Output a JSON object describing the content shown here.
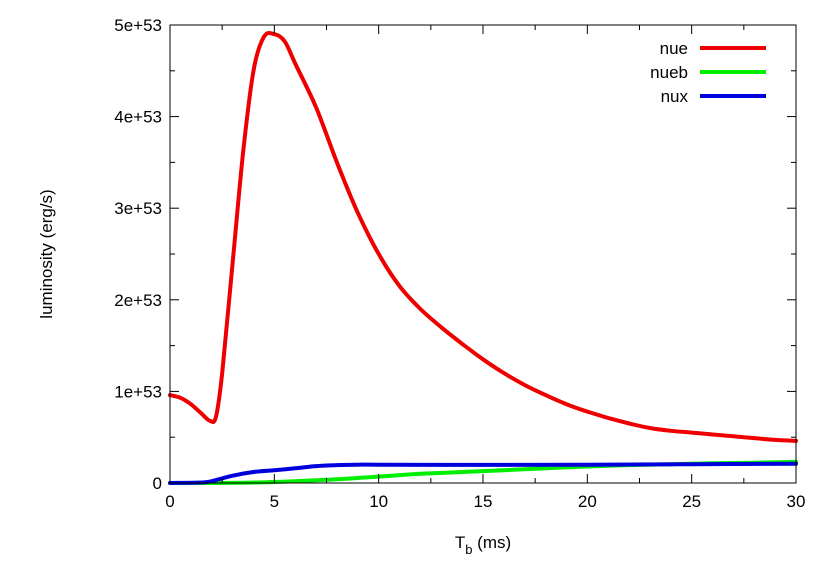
{
  "chart_data": {
    "type": "line",
    "xlabel_main": "T",
    "xlabel_sub": "b",
    "xlabel_rest": " (ms)",
    "ylabel": "luminosity (erg/s)",
    "xlim": [
      0,
      30
    ],
    "ylim": [
      0,
      5e+53
    ],
    "x_ticks": [
      0,
      5,
      10,
      15,
      20,
      25,
      30
    ],
    "x_tick_labels": [
      "0",
      "5",
      "10",
      "15",
      "20",
      "25",
      "30"
    ],
    "y_ticks": [
      0,
      1e+53,
      2e+53,
      3e+53,
      4e+53,
      5e+53
    ],
    "y_tick_labels": [
      "0",
      "1e+53",
      "2e+53",
      "3e+53",
      "4e+53",
      "5e+53"
    ],
    "grid": false,
    "legend_position": "top-right",
    "series": [
      {
        "name": "nue",
        "color": "#ee0000",
        "points": [
          [
            0,
            9.6e+52
          ],
          [
            0.5,
            9.3e+52
          ],
          [
            1,
            8.6e+52
          ],
          [
            1.5,
            7.6e+52
          ],
          [
            1.9,
            6.8e+52
          ],
          [
            2.2,
            7.2e+52
          ],
          [
            2.5,
            1.2e+53
          ],
          [
            3,
            2.4e+53
          ],
          [
            3.5,
            3.6e+53
          ],
          [
            4,
            4.5e+53
          ],
          [
            4.5,
            4.87e+53
          ],
          [
            5,
            4.9e+53
          ],
          [
            5.5,
            4.82e+53
          ],
          [
            6,
            4.58e+53
          ],
          [
            7,
            4.1e+53
          ],
          [
            8,
            3.5e+53
          ],
          [
            9,
            2.95e+53
          ],
          [
            10,
            2.5e+53
          ],
          [
            11,
            2.15e+53
          ],
          [
            12,
            1.9e+53
          ],
          [
            13,
            1.7e+53
          ],
          [
            14,
            1.52e+53
          ],
          [
            15,
            1.35e+53
          ],
          [
            16,
            1.2e+53
          ],
          [
            17,
            1.07e+53
          ],
          [
            18,
            9.6e+52
          ],
          [
            19,
            8.6e+52
          ],
          [
            20,
            7.8e+52
          ],
          [
            21,
            7.1e+52
          ],
          [
            22,
            6.5e+52
          ],
          [
            23,
            6e+52
          ],
          [
            24,
            5.7e+52
          ],
          [
            25,
            5.5e+52
          ],
          [
            26,
            5.3e+52
          ],
          [
            27,
            5.1e+52
          ],
          [
            28,
            4.9e+52
          ],
          [
            29,
            4.7e+52
          ],
          [
            30,
            4.6e+52
          ]
        ]
      },
      {
        "name": "nueb",
        "color": "#00ee00",
        "points": [
          [
            0,
            0
          ],
          [
            2,
            0
          ],
          [
            4,
            5e+50
          ],
          [
            6,
            2e+51
          ],
          [
            8,
            4e+51
          ],
          [
            10,
            7e+51
          ],
          [
            12,
            1e+52
          ],
          [
            14,
            1.2e+52
          ],
          [
            16,
            1.4e+52
          ],
          [
            18,
            1.6e+52
          ],
          [
            20,
            1.8e+52
          ],
          [
            22,
            1.95e+52
          ],
          [
            24,
            2.05e+52
          ],
          [
            26,
            2.15e+52
          ],
          [
            28,
            2.22e+52
          ],
          [
            30,
            2.3e+52
          ]
        ]
      },
      {
        "name": "nux",
        "color": "#0000dd",
        "points": [
          [
            0,
            0
          ],
          [
            1.5,
            5e+50
          ],
          [
            2,
            2e+51
          ],
          [
            3,
            8e+51
          ],
          [
            4,
            1.2e+52
          ],
          [
            5,
            1.4e+52
          ],
          [
            6,
            1.6e+52
          ],
          [
            7,
            1.85e+52
          ],
          [
            8,
            1.95e+52
          ],
          [
            9,
            2e+52
          ],
          [
            10,
            2e+52
          ],
          [
            15,
            1.98e+52
          ],
          [
            20,
            2e+52
          ],
          [
            25,
            2.05e+52
          ],
          [
            30,
            2.1e+52
          ]
        ]
      }
    ]
  }
}
